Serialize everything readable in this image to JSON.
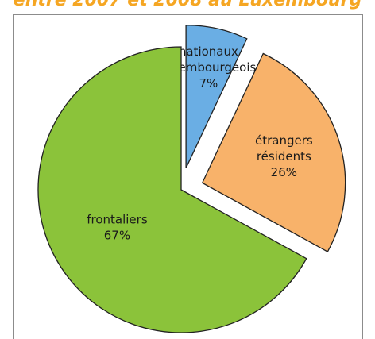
{
  "title": "entre 2007 et 2008 au Luxembourg",
  "colors": {
    "title": "#f5a623",
    "border": "#222222"
  },
  "chart_data": {
    "type": "pie",
    "title": "entre 2007 et 2008 au Luxembourg",
    "slices": [
      {
        "lines": [
          "nationaux",
          "luxembourgeois",
          "7%"
        ],
        "value": 7,
        "color": "#6aaee4",
        "exploded": true
      },
      {
        "lines": [
          "étrangers",
          "résidents",
          "26%"
        ],
        "value": 26,
        "color": "#f8b26a",
        "exploded": true
      },
      {
        "lines": [
          "frontaliers",
          "67%"
        ],
        "value": 67,
        "color": "#8bc33a",
        "exploded": false
      }
    ]
  }
}
